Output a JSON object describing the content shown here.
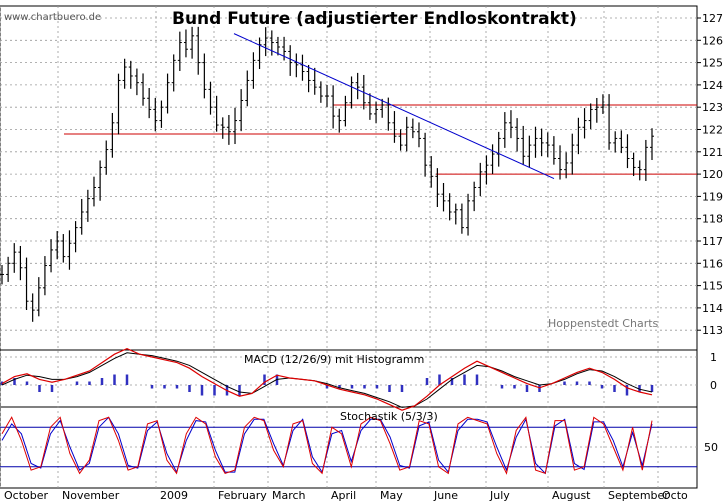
{
  "title": "Bund Future (adjustierter Endloskontrakt)",
  "watermark": "www.chartbuero.de",
  "credit": "Hoppenstedt Charts",
  "macd_label": "MACD (12/26/9) mit Histogramm",
  "stoch_label": "Stochastik (5/3/3)",
  "chart_data": [
    {
      "type": "line",
      "panel": "price",
      "xlabel": "",
      "ylabel": "",
      "ylim": [
        112.5,
        127.6
      ],
      "yticks": [
        113,
        114,
        115,
        116,
        117,
        118,
        119,
        120,
        121,
        122,
        123,
        124,
        125,
        126,
        127
      ],
      "months": [
        "October",
        "November",
        "2009",
        "February",
        "March",
        "April",
        "May",
        "June",
        "July",
        "August",
        "September",
        "Octo"
      ],
      "series": [
        {
          "values": [
            115.5,
            116.0,
            116.5,
            115.8,
            114.3,
            113.9,
            114.9,
            115.9,
            116.6,
            117.0,
            116.3,
            116.9,
            117.6,
            118.3,
            118.9,
            119.4,
            120.3,
            121.1,
            122.3,
            124.2,
            124.8,
            124.4,
            124.1,
            123.4,
            122.9,
            122.4,
            123.0,
            124.1,
            125.1,
            125.9,
            125.6,
            126.2,
            125.0,
            123.8,
            123.0,
            122.2,
            122.1,
            121.9,
            122.4,
            123.3,
            124.2,
            125.1,
            125.8,
            126.1,
            125.9,
            125.7,
            125.5,
            125.0,
            124.9,
            124.6,
            124.2,
            123.9,
            123.5,
            123.5,
            122.6,
            122.4,
            123.2,
            124.1,
            123.9,
            123.2,
            122.7,
            122.9,
            123.1,
            122.3,
            121.7,
            121.3,
            122.1,
            121.9,
            121.6,
            120.4,
            119.9,
            119.1,
            118.8,
            118.3,
            118.4,
            117.6,
            118.8,
            119.4,
            120.1,
            120.4,
            120.9,
            121.6,
            122.3,
            122.1,
            121.6,
            120.8,
            121.3,
            121.6,
            121.4,
            121.3,
            120.7,
            120.2,
            120.5,
            121.3,
            122.1,
            122.4,
            122.9,
            123.0,
            123.1,
            121.4,
            121.6,
            121.2,
            120.7,
            120.3,
            120.2,
            121.2,
            121.7
          ]
        }
      ],
      "support_lines": [
        {
          "y": 121.8,
          "from": "November",
          "to": "May"
        },
        {
          "y": 123.1,
          "from": "April",
          "to": "Octo"
        },
        {
          "y": 120.0,
          "from": "June",
          "to": "Octo"
        }
      ],
      "trendline": {
        "from": {
          "month": "February",
          "y": 126.3
        },
        "to": {
          "month": "August",
          "y": 119.8
        }
      }
    },
    {
      "type": "line",
      "panel": "macd",
      "title": "MACD (12/26/9) mit Histogramm",
      "yticks": [
        1,
        0
      ],
      "series": [
        {
          "values": [
            0.05,
            0.3,
            0.4,
            0.2,
            0.1,
            0.2,
            0.35,
            0.5,
            0.8,
            1.1,
            1.3,
            1.1,
            1.0,
            0.9,
            0.8,
            0.6,
            0.3,
            0.05,
            -0.2,
            -0.4,
            -0.3,
            0.1,
            0.35,
            0.25,
            0.2,
            0.15,
            0.0,
            -0.15,
            -0.25,
            -0.35,
            -0.5,
            -0.7,
            -0.9,
            -0.75,
            -0.4,
            0.0,
            0.3,
            0.6,
            0.85,
            0.65,
            0.45,
            0.25,
            0.05,
            -0.1,
            0.05,
            0.25,
            0.45,
            0.6,
            0.45,
            0.2,
            -0.1,
            -0.25,
            -0.35
          ]
        },
        {
          "values": [
            0.0,
            0.2,
            0.35,
            0.3,
            0.2,
            0.2,
            0.3,
            0.45,
            0.7,
            0.95,
            1.15,
            1.1,
            1.05,
            0.95,
            0.85,
            0.7,
            0.45,
            0.2,
            -0.05,
            -0.25,
            -0.3,
            -0.05,
            0.2,
            0.25,
            0.2,
            0.15,
            0.05,
            -0.1,
            -0.2,
            -0.3,
            -0.45,
            -0.6,
            -0.8,
            -0.75,
            -0.5,
            -0.15,
            0.2,
            0.45,
            0.7,
            0.65,
            0.5,
            0.3,
            0.15,
            0.0,
            0.05,
            0.2,
            0.4,
            0.55,
            0.5,
            0.3,
            0.05,
            -0.15,
            -0.25
          ]
        }
      ]
    },
    {
      "type": "line",
      "panel": "stochastic",
      "title": "Stochastik (5/3/3)",
      "yticks": [
        50
      ],
      "levels": [
        80,
        20
      ],
      "series": [
        {
          "values": [
            70,
            95,
            60,
            15,
            20,
            80,
            95,
            40,
            10,
            30,
            90,
            95,
            60,
            15,
            20,
            85,
            90,
            30,
            10,
            70,
            95,
            85,
            35,
            10,
            15,
            80,
            95,
            90,
            45,
            20,
            85,
            90,
            25,
            10,
            80,
            70,
            20,
            85,
            95,
            90,
            55,
            15,
            20,
            90,
            85,
            20,
            10,
            85,
            95,
            90,
            85,
            40,
            10,
            75,
            95,
            15,
            10,
            90,
            90,
            15,
            20,
            95,
            85,
            50,
            15,
            80,
            15,
            90
          ]
        },
        {
          "values": [
            60,
            85,
            70,
            25,
            18,
            70,
            90,
            50,
            15,
            25,
            80,
            95,
            70,
            22,
            18,
            75,
            88,
            40,
            12,
            60,
            90,
            88,
            45,
            12,
            12,
            70,
            92,
            92,
            55,
            22,
            75,
            92,
            35,
            12,
            70,
            75,
            28,
            75,
            92,
            92,
            65,
            22,
            18,
            82,
            88,
            30,
            12,
            75,
            92,
            92,
            88,
            50,
            15,
            65,
            92,
            25,
            10,
            82,
            92,
            25,
            16,
            88,
            88,
            60,
            20,
            72,
            22,
            85
          ]
        }
      ]
    }
  ]
}
